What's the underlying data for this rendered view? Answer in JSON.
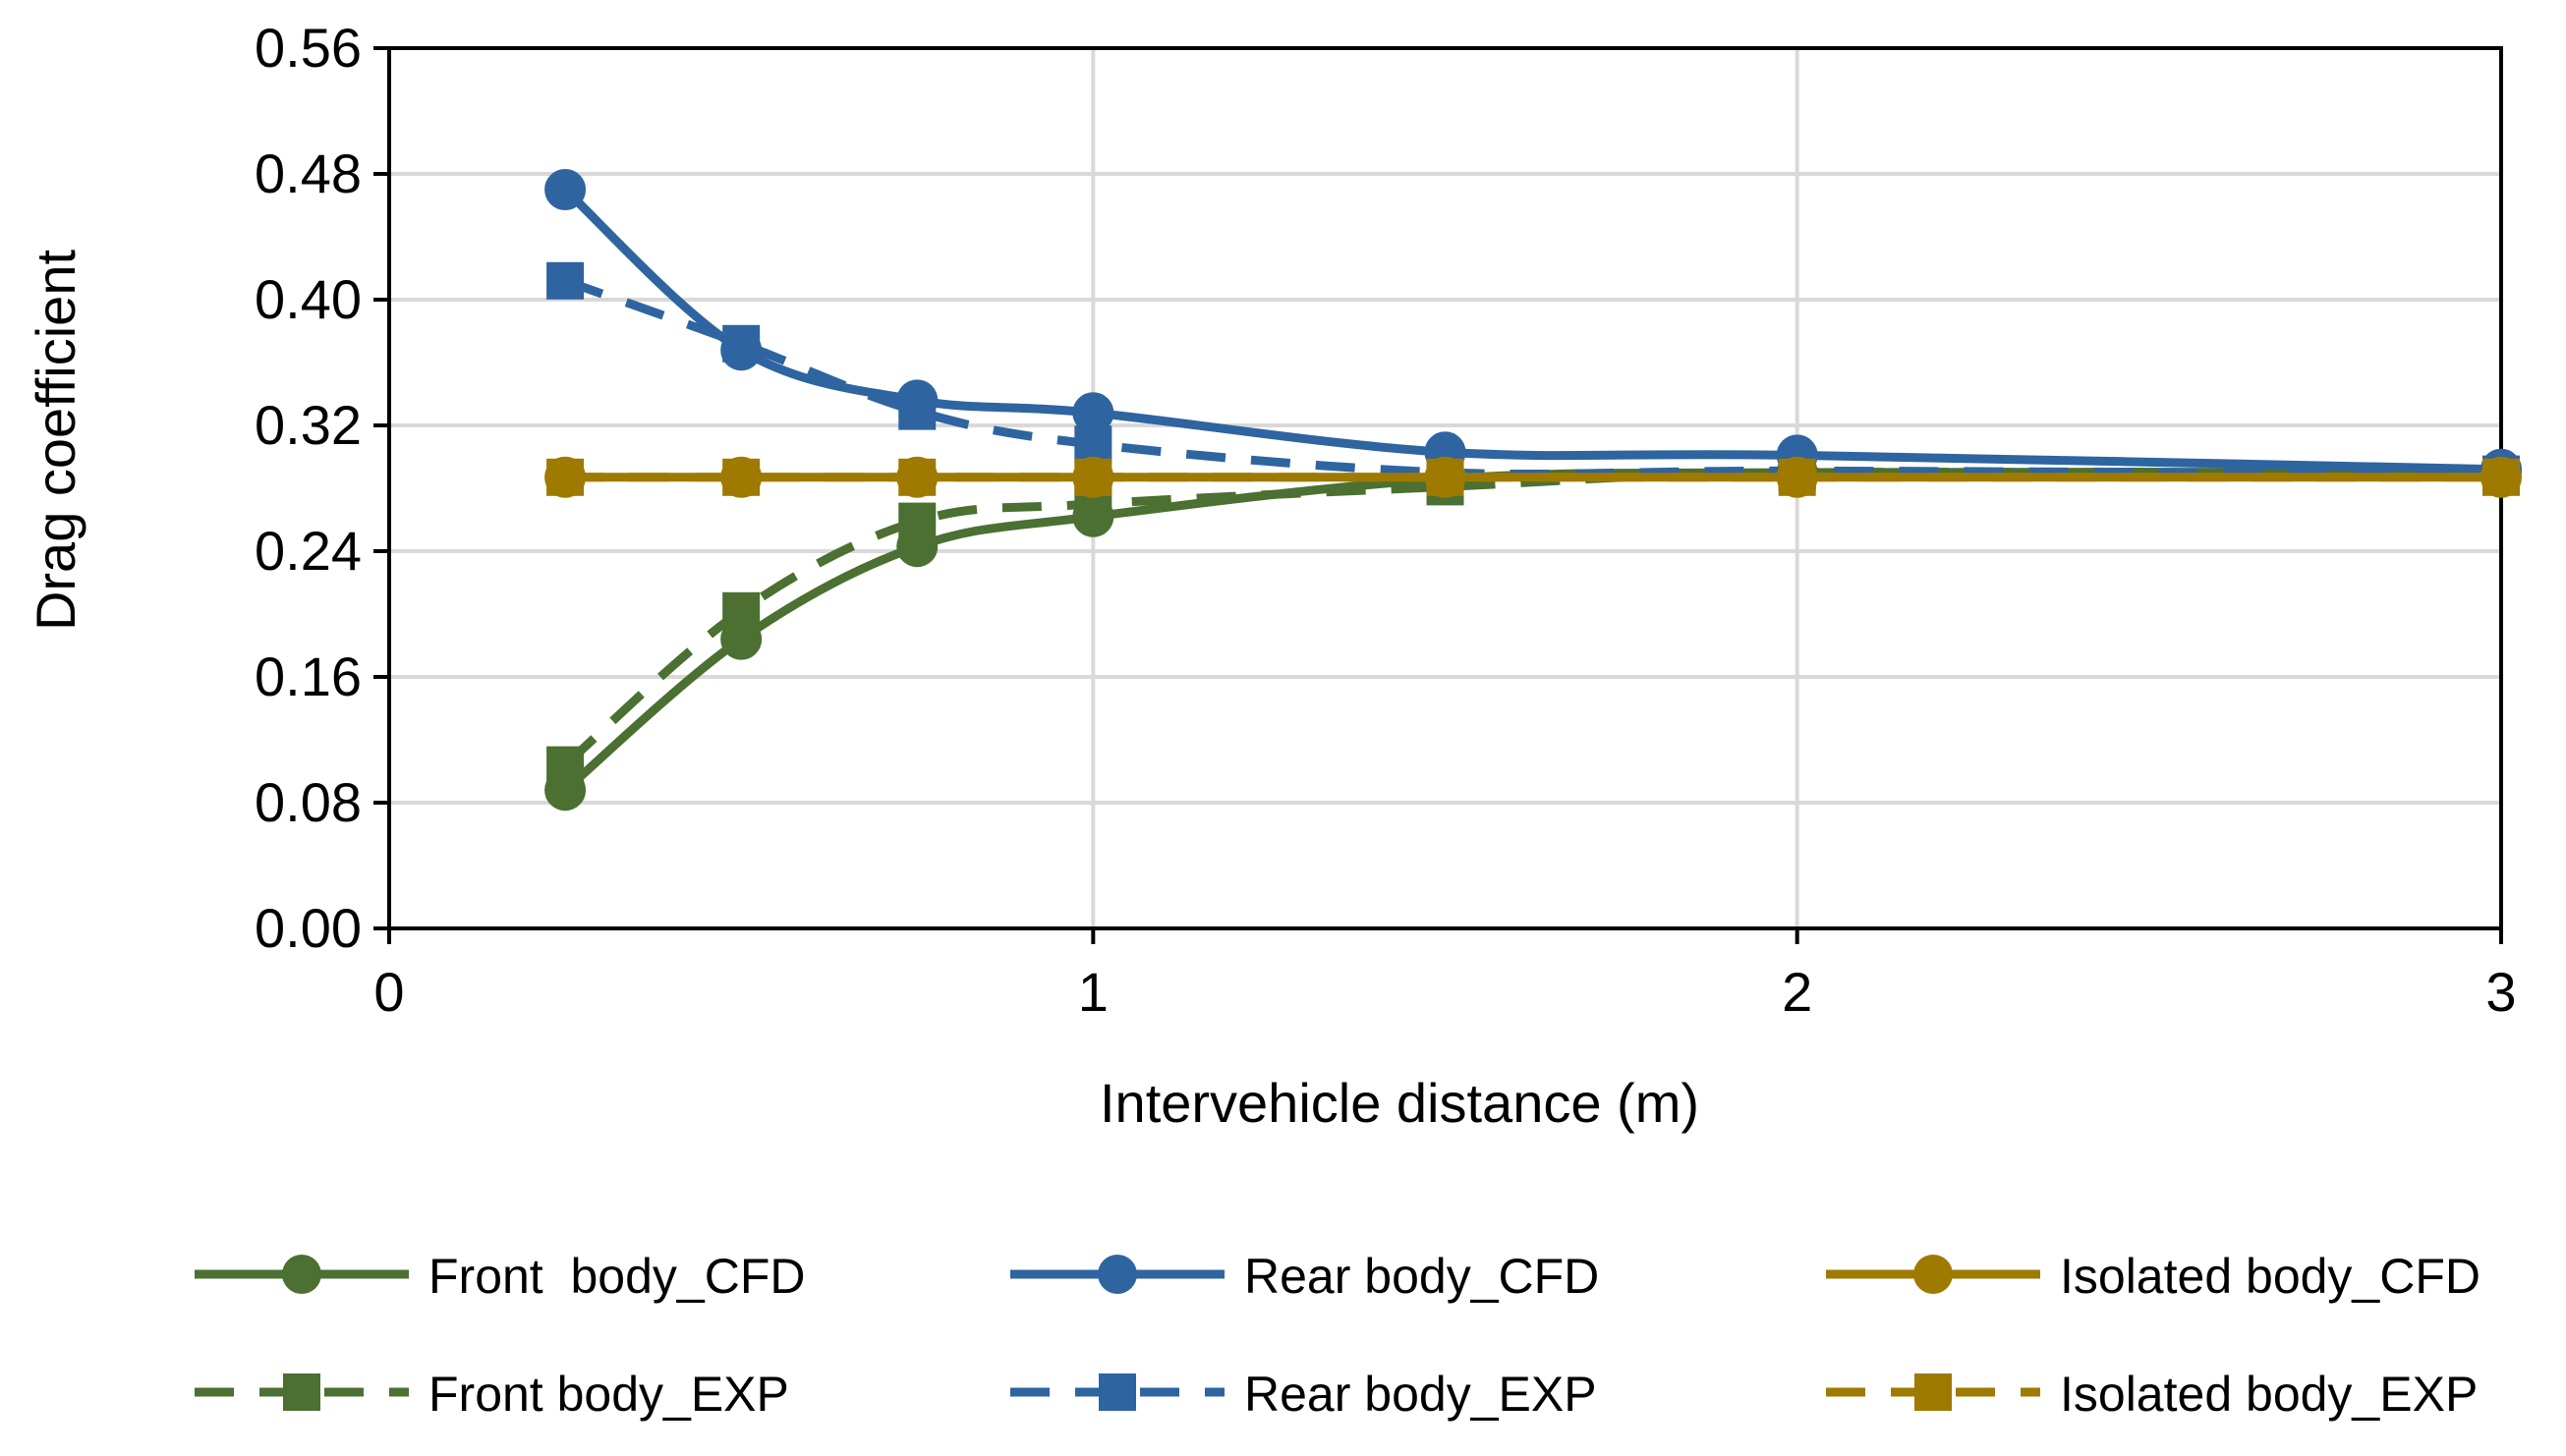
{
  "chart_data": {
    "type": "line",
    "title": "",
    "xlabel": "Intervehicle distance (m)",
    "ylabel": "Drag coefficient",
    "xlim": [
      0,
      3
    ],
    "ylim": [
      0,
      0.56
    ],
    "x_ticks": [
      0,
      1,
      2,
      3
    ],
    "x_tick_labels": [
      "0",
      "1",
      "2",
      "3"
    ],
    "y_ticks": [
      0,
      0.08,
      0.16,
      0.24,
      0.32,
      0.4,
      0.48,
      0.56
    ],
    "y_tick_labels": [
      "0.00",
      "0.08",
      "0.16",
      "0.24",
      "0.32",
      "0.40",
      "0.48",
      "0.56"
    ],
    "grid": true,
    "legend_position": "bottom",
    "series": [
      {
        "name": "Front  body_CFD",
        "color": "#4B7032",
        "style": "solid",
        "marker": "circle",
        "x": [
          0.25,
          0.5,
          0.75,
          1,
          1.5,
          2,
          3
        ],
        "y": [
          0.088,
          0.184,
          0.243,
          0.262,
          0.286,
          0.29,
          0.29
        ]
      },
      {
        "name": "Rear body_CFD",
        "color": "#2E64A0",
        "style": "solid",
        "marker": "circle",
        "x": [
          0.25,
          0.5,
          0.75,
          1,
          1.5,
          2,
          3
        ],
        "y": [
          0.47,
          0.368,
          0.336,
          0.328,
          0.303,
          0.301,
          0.292
        ]
      },
      {
        "name": "Isolated body_CFD",
        "color": "#9E7A00",
        "style": "solid",
        "marker": "circle",
        "x": [
          0.25,
          0.5,
          0.75,
          1,
          1.5,
          2,
          3
        ],
        "y": [
          0.287,
          0.287,
          0.287,
          0.287,
          0.287,
          0.287,
          0.287
        ]
      },
      {
        "name": "Front body_EXP",
        "color": "#4B7032",
        "style": "dashed",
        "marker": "square",
        "x": [
          0.25,
          0.5,
          0.75,
          1,
          1.5,
          2,
          3
        ],
        "y": [
          0.104,
          0.202,
          0.259,
          0.27,
          0.281,
          0.29,
          0.288
        ]
      },
      {
        "name": "Rear body_EXP",
        "color": "#2E64A0",
        "style": "dashed",
        "marker": "square",
        "x": [
          0.25,
          0.5,
          0.75,
          1,
          1.5,
          2,
          3
        ],
        "y": [
          0.412,
          0.372,
          0.329,
          0.308,
          0.29,
          0.291,
          0.289
        ]
      },
      {
        "name": "Isolated body_EXP",
        "color": "#9E7A00",
        "style": "dashed",
        "marker": "square",
        "x": [
          0.25,
          0.5,
          0.75,
          1,
          1.5,
          2,
          3
        ],
        "y": [
          0.287,
          0.287,
          0.287,
          0.287,
          0.287,
          0.287,
          0.287
        ]
      }
    ],
    "legend_rows": [
      [
        "Front  body_CFD",
        "Rear body_CFD",
        "Isolated body_CFD"
      ],
      [
        "Front body_EXP",
        "Rear body_EXP",
        "Isolated body_EXP"
      ]
    ]
  }
}
